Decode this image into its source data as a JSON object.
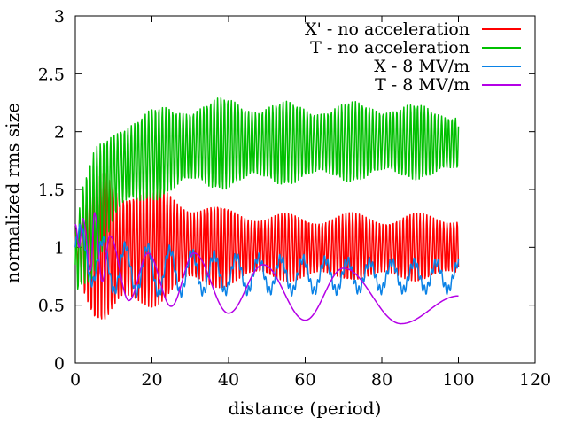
{
  "chart_data": {
    "type": "line",
    "title": "",
    "xlabel": "distance (period)",
    "ylabel": "normalized rms size",
    "xlim": [
      0,
      120
    ],
    "ylim": [
      0,
      3
    ],
    "x_ticks": [
      0,
      20,
      40,
      60,
      80,
      100,
      120
    ],
    "x_tick_labels": [
      "0",
      "20",
      "40",
      "60",
      "80",
      "100",
      "120"
    ],
    "y_ticks": [
      0,
      0.5,
      1,
      1.5,
      2,
      2.5,
      3
    ],
    "y_tick_labels": [
      "0",
      "0.5",
      "1",
      "1.5",
      "2",
      "2.5",
      "3"
    ],
    "grid": false,
    "legend_position": "top-right",
    "series": [
      {
        "name": "X - no acceleration",
        "legend_label": "X' - no acceleration",
        "color": "#ff0000",
        "x_start": 0,
        "x_end": 100,
        "points": 800,
        "model": {
          "kind": "oscillating",
          "osc_period": 0.88,
          "envelope_x": [
            0,
            2,
            5,
            8,
            12,
            20,
            30,
            50,
            80,
            100
          ],
          "center_y": [
            1.0,
            1.0,
            0.95,
            1.0,
            1.0,
            1.02,
            1.02,
            1.0,
            1.0,
            1.0
          ],
          "amp_y": [
            0.15,
            0.4,
            0.6,
            0.75,
            0.6,
            0.55,
            0.4,
            0.3,
            0.3,
            0.3
          ]
        }
      },
      {
        "name": "T - no acceleration",
        "legend_label": "T - no acceleration",
        "color": "#00c000",
        "x_start": 0,
        "x_end": 100,
        "points": 800,
        "model": {
          "kind": "oscillating",
          "osc_period": 0.9,
          "envelope_x": [
            0,
            2,
            5,
            8,
            12,
            20,
            30,
            40,
            60,
            80,
            100
          ],
          "center_y": [
            0.85,
            1.1,
            1.3,
            1.5,
            1.7,
            1.8,
            1.88,
            1.9,
            1.9,
            1.92,
            1.9
          ],
          "amp_y": [
            0.3,
            0.45,
            0.55,
            0.5,
            0.45,
            0.4,
            0.4,
            0.4,
            0.35,
            0.35,
            0.3
          ]
        }
      },
      {
        "name": "X - 8 MV/m",
        "legend_label": "X - 8 MV/m",
        "color": "#0a82e6",
        "x_start": 0,
        "x_end": 100,
        "points": 800,
        "model": {
          "kind": "slow_wave",
          "period": 5.8,
          "fast_period": 0.9,
          "fast_amp": 0.04,
          "envelope_x": [
            0,
            4,
            10,
            20,
            40,
            60,
            80,
            100
          ],
          "center_y": [
            1.0,
            0.9,
            0.82,
            0.8,
            0.77,
            0.76,
            0.75,
            0.75
          ],
          "amp_y": [
            0.2,
            0.2,
            0.2,
            0.2,
            0.15,
            0.14,
            0.12,
            0.12
          ]
        }
      },
      {
        "name": "T - 8 MV/m",
        "legend_label": "T - 8 MV/m",
        "color": "#b400e6",
        "x_start": 0,
        "x_end": 100,
        "points": 800,
        "model": {
          "kind": "chirp",
          "extrema": [
            [
              0,
              1.2
            ],
            [
              1,
              1.0
            ],
            [
              2,
              1.25
            ],
            [
              4,
              0.8
            ],
            [
              5,
              1.3
            ],
            [
              7,
              0.7
            ],
            [
              9,
              1.1
            ],
            [
              14,
              0.54
            ],
            [
              19,
              0.95
            ],
            [
              25,
              0.49
            ],
            [
              31,
              0.95
            ],
            [
              40,
              0.43
            ],
            [
              49,
              0.85
            ],
            [
              60,
              0.37
            ],
            [
              70,
              0.82
            ],
            [
              85,
              0.34
            ],
            [
              100,
              0.58
            ]
          ]
        }
      }
    ]
  }
}
